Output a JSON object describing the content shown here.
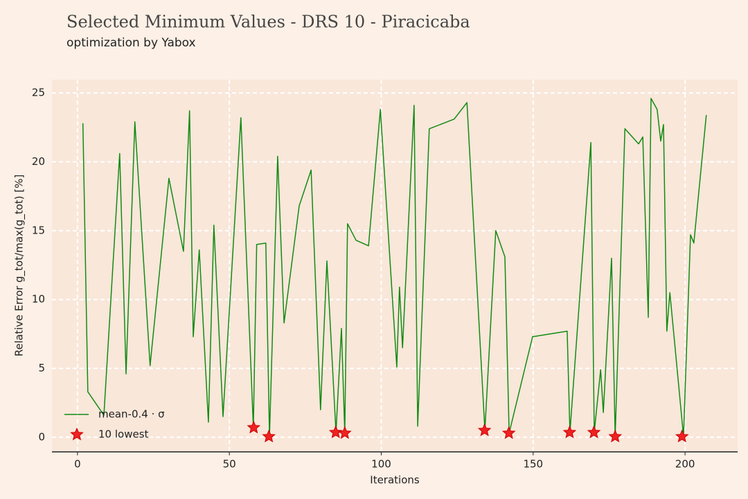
{
  "chart_data": {
    "type": "line",
    "title": "Selected Minimum Values - DRS 10 - Piracicaba",
    "subtitle": "optimization by Yabox",
    "xlabel": "Iterations",
    "ylabel": "Relative Error g_tot/max(g_tot) [%]",
    "xlim": [
      -8.4,
      217.3
    ],
    "ylim": [
      -1.06,
      25.96
    ],
    "xticks": [
      0,
      50,
      100,
      150,
      200
    ],
    "yticks": [
      0,
      5,
      10,
      15,
      20,
      25
    ],
    "grid": true,
    "legend": "lower left",
    "series": [
      {
        "name": "mean-0.4 · σ",
        "color": "#138a13",
        "x": [
          1.8,
          3.4,
          8.7,
          13.9,
          16,
          18.9,
          23.9,
          30.1,
          34.9,
          36.9,
          38.1,
          40.1,
          43.1,
          44.9,
          47.9,
          53.8,
          57.9,
          59,
          62,
          63.2,
          65.9,
          68,
          73,
          76.9,
          80,
          82.1,
          85.1,
          86.9,
          88,
          88.9,
          91.7,
          95.8,
          99.7,
          105.1,
          106,
          107,
          110.8,
          112,
          115.8,
          124,
          128.2,
          134.1,
          137.7,
          140.7,
          142.1,
          149.8,
          161.2,
          162.1,
          169,
          170.1,
          172.2,
          173.1,
          175.8,
          177,
          180.2,
          184.7,
          186.1,
          187.9,
          188.8,
          190.8,
          192,
          192.9,
          194,
          195,
          199.5,
          201.8,
          202.9,
          207
        ],
        "values": [
          22.8,
          3.3,
          1.6,
          20.6,
          4.6,
          22.9,
          5.2,
          18.8,
          13.5,
          23.7,
          7.3,
          13.6,
          1.1,
          15.4,
          1.5,
          23.2,
          0.7,
          14.0,
          14.1,
          0.05,
          20.4,
          8.3,
          16.8,
          19.4,
          2.0,
          12.8,
          0.35,
          7.9,
          0.3,
          15.5,
          14.3,
          13.9,
          23.8,
          5.1,
          10.9,
          6.5,
          24.1,
          0.8,
          22.4,
          23.1,
          24.3,
          0.5,
          15.0,
          13.1,
          0.3,
          7.3,
          7.7,
          0.35,
          21.4,
          0.35,
          4.9,
          1.8,
          13.0,
          0.05,
          22.4,
          21.3,
          21.8,
          8.7,
          24.6,
          23.8,
          21.5,
          22.7,
          7.7,
          10.5,
          0.05,
          14.7,
          14.1,
          23.4
        ]
      },
      {
        "name": "10 lowest",
        "color": "#ee2222",
        "marker": "star",
        "x": [
          58,
          63,
          85,
          88,
          134,
          142,
          162,
          170,
          177,
          199
        ],
        "values": [
          0.7,
          0.05,
          0.35,
          0.3,
          0.5,
          0.3,
          0.35,
          0.35,
          0.05,
          0.05
        ]
      }
    ]
  }
}
